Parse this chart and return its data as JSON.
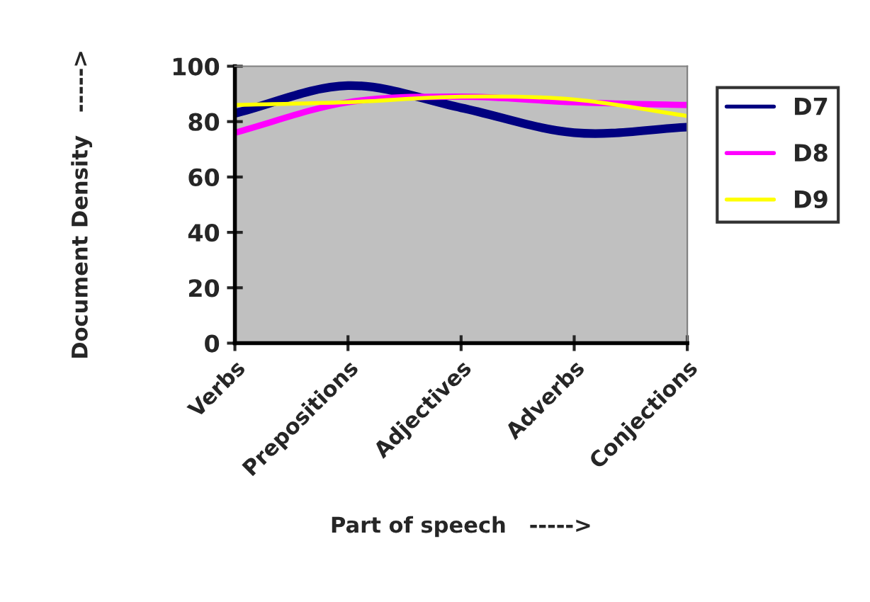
{
  "chart_data": {
    "type": "line",
    "xlabel": "Part of speech   ----->",
    "ylabel": "Document Density   ----->",
    "categories": [
      "Verbs",
      "Prepositions",
      "Adjectives",
      "Adverbs",
      "Conjections"
    ],
    "series": [
      {
        "name": "D7",
        "color": "#000080",
        "values": [
          83,
          93,
          85,
          76,
          78
        ]
      },
      {
        "name": "D8",
        "color": "#ff00ff",
        "values": [
          76,
          87,
          89,
          87,
          86
        ]
      },
      {
        "name": "D9",
        "color": "#ffff00",
        "values": [
          86,
          87,
          89,
          88,
          82
        ]
      }
    ],
    "ylim": [
      0,
      100
    ],
    "yticks": [
      0,
      20,
      40,
      60,
      80,
      100
    ],
    "grid": false,
    "legend": "right",
    "marker": "none",
    "line_style": "solid"
  }
}
